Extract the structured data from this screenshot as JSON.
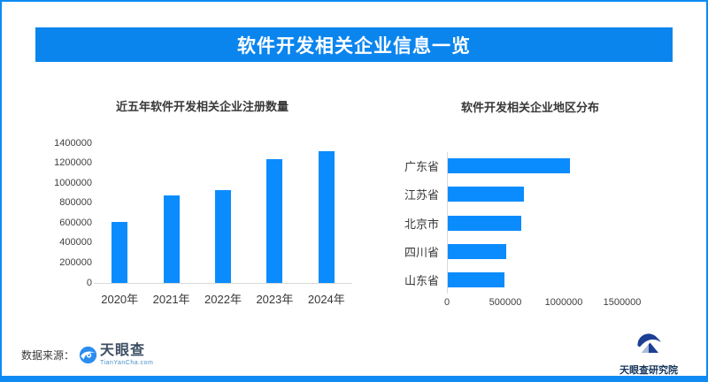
{
  "page": {
    "border_color": "#0d8bf2",
    "background_color": "#ffffff"
  },
  "header": {
    "title": "软件开发相关企业信息一览",
    "bg_color": "#0b85ee",
    "text_color": "#ffffff"
  },
  "chart_data": [
    {
      "type": "bar",
      "title": "近五年软件开发相关企业注册数量",
      "categories": [
        "2020年",
        "2021年",
        "2022年",
        "2023年",
        "2024年"
      ],
      "values": [
        610000,
        880000,
        930000,
        1240000,
        1320000
      ],
      "xlabel": "",
      "ylabel": "",
      "ylim": [
        0,
        1400000
      ],
      "yticks": [
        0,
        200000,
        400000,
        600000,
        800000,
        1000000,
        1200000,
        1400000
      ],
      "bar_color": "#0a8cff",
      "grid": false,
      "legend": "none"
    },
    {
      "type": "bar-horizontal",
      "title": "软件开发相关企业地区分布",
      "categories": [
        "广东省",
        "江苏省",
        "北京市",
        "四川省",
        "山东省"
      ],
      "values": [
        1050000,
        660000,
        640000,
        510000,
        490000
      ],
      "xlabel": "",
      "ylabel": "",
      "xlim": [
        0,
        1500000
      ],
      "xticks": [
        0,
        500000,
        1000000,
        1500000
      ],
      "bar_color": "#0a8cff",
      "grid": false,
      "legend": "none"
    }
  ],
  "footer": {
    "source_label": "数据来源：",
    "source_logo_name": "天眼查",
    "source_logo_domain": "TianYanCha.com",
    "research_logo_name": "天眼查研究院"
  }
}
